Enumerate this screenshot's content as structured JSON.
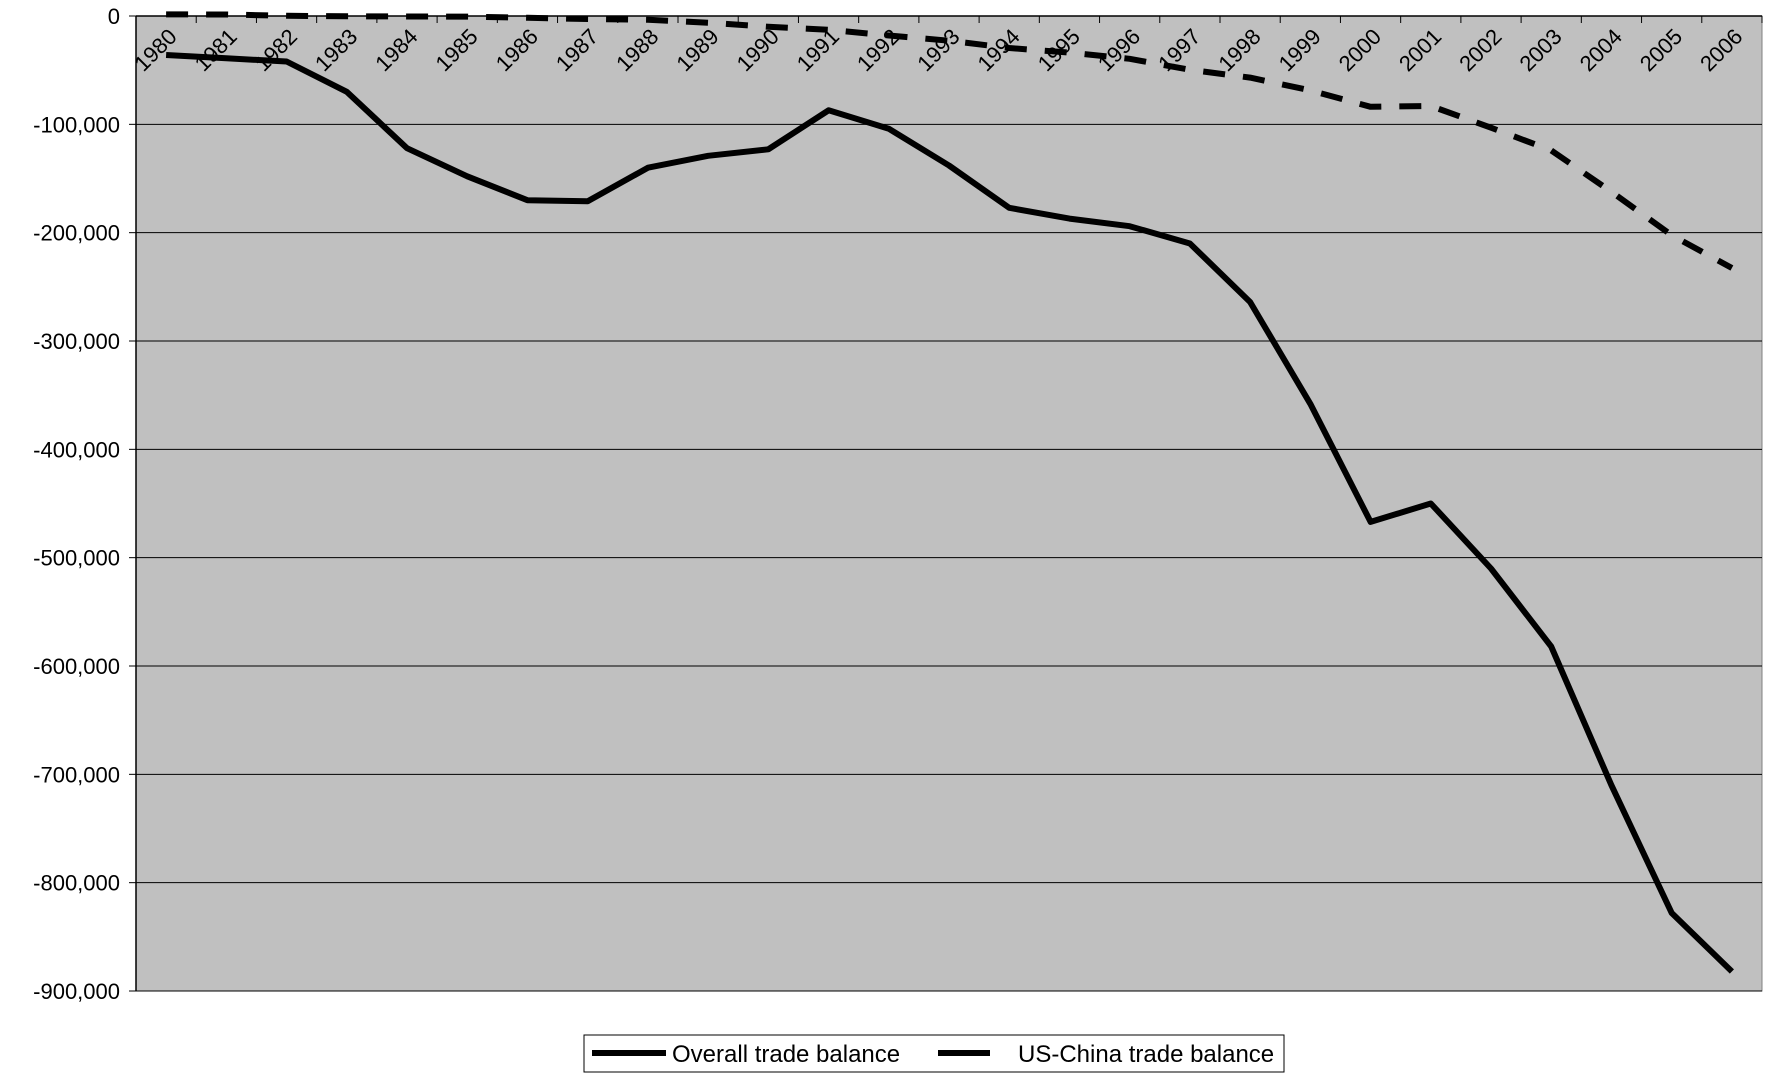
{
  "chart_data": {
    "type": "line",
    "title": "",
    "xlabel": "",
    "ylabel": "",
    "categories": [
      "1980",
      "1981",
      "1982",
      "1983",
      "1984",
      "1985",
      "1986",
      "1987",
      "1988",
      "1989",
      "1990",
      "1991",
      "1992",
      "1993",
      "1994",
      "1995",
      "1996",
      "1997",
      "1998",
      "1999",
      "2000",
      "2001",
      "2002",
      "2003",
      "2004",
      "2005",
      "2006"
    ],
    "ylim": [
      -900000,
      0
    ],
    "yticks": [
      0,
      -100000,
      -200000,
      -300000,
      -400000,
      -500000,
      -600000,
      -700000,
      -800000,
      -900000
    ],
    "ytick_labels": [
      "0",
      "-100,000",
      "-200,000",
      "-300,000",
      "-400,000",
      "-500,000",
      "-600,000",
      "-700,000",
      "-800,000",
      "-900,000"
    ],
    "grid": true,
    "legend_placement": "bottom-center",
    "plot_background": "#c0c0c0",
    "series": [
      {
        "name": "Overall trade balance",
        "style": "solid",
        "color": "#000000",
        "values": [
          -36000,
          -39000,
          -42000,
          -70000,
          -122000,
          -148000,
          -170000,
          -171000,
          -140000,
          -129000,
          -123000,
          -87000,
          -104000,
          -138000,
          -177000,
          -187000,
          -194000,
          -210000,
          -264000,
          -358000,
          -467000,
          -450000,
          -510000,
          -582000,
          -710000,
          -828000,
          -882000
        ]
      },
      {
        "name": "US-China trade balance",
        "style": "dashed",
        "color": "#000000",
        "values": [
          1500,
          1400,
          200,
          -300,
          -500,
          -600,
          -1700,
          -2800,
          -3500,
          -6200,
          -10000,
          -12700,
          -18000,
          -22800,
          -29500,
          -33800,
          -39500,
          -49700,
          -56900,
          -68700,
          -83800,
          -83100,
          -103100,
          -124100,
          -162300,
          -202300,
          -232600
        ]
      }
    ]
  }
}
